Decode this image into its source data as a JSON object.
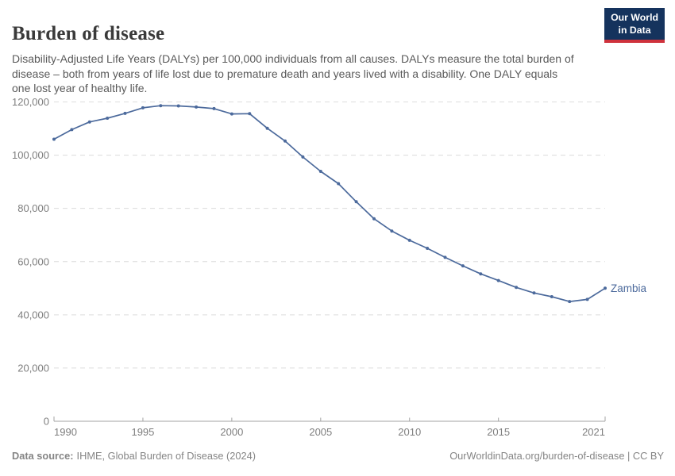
{
  "header": {
    "title": "Burden of disease",
    "subtitle": "Disability-Adjusted Life Years (DALYs) per 100,000 individuals from all causes. DALYs measure the total burden of disease – both from years of life lost due to premature death and years lived with a disability. One DALY equals one lost year of healthy life.",
    "logo": {
      "line1": "Our World",
      "line2": "in Data",
      "bg_color": "#15335d",
      "stripe_color": "#cf323c"
    }
  },
  "chart_data": {
    "type": "line",
    "title": "Burden of disease",
    "ylabel": "",
    "xlabel": "",
    "xlim": [
      1990,
      2021
    ],
    "ylim": [
      0,
      120000
    ],
    "grid": "horizontal-dashed",
    "legend": "end-of-line-label",
    "xticks": [
      1990,
      1995,
      2000,
      2005,
      2010,
      2015,
      2021
    ],
    "xtick_labels": [
      "1990",
      "1995",
      "2000",
      "2005",
      "2010",
      "2015",
      "2021"
    ],
    "yticks": [
      0,
      20000,
      40000,
      60000,
      80000,
      100000,
      120000
    ],
    "ytick_labels": [
      "0",
      "20,000",
      "40,000",
      "60,000",
      "80,000",
      "100,000",
      "120,000"
    ],
    "series": [
      {
        "name": "Zambia",
        "color": "#4c6a9c",
        "x": [
          1990,
          1991,
          1992,
          1993,
          1994,
          1995,
          1996,
          1997,
          1998,
          1999,
          2000,
          2001,
          2002,
          2003,
          2004,
          2005,
          2006,
          2007,
          2008,
          2009,
          2010,
          2011,
          2012,
          2013,
          2014,
          2015,
          2016,
          2017,
          2018,
          2019,
          2020,
          2021
        ],
        "values": [
          106000,
          109600,
          112500,
          113900,
          115700,
          117800,
          118600,
          118500,
          118100,
          117500,
          115500,
          115600,
          110100,
          105300,
          99300,
          93900,
          89300,
          82500,
          76100,
          71500,
          68000,
          65000,
          61600,
          58400,
          55400,
          52900,
          50300,
          48200,
          46800,
          45000,
          45800,
          50000
        ]
      }
    ]
  },
  "footer": {
    "source_label": "Data source:",
    "source_value": "IHME, Global Burden of Disease (2024)",
    "link": "OurWorldinData.org/burden-of-disease",
    "separator": " | ",
    "license": "CC BY"
  },
  "colors": {
    "accent_line": "#4c6a9c",
    "logo_navy": "#15335d",
    "logo_red": "#cf323c"
  }
}
